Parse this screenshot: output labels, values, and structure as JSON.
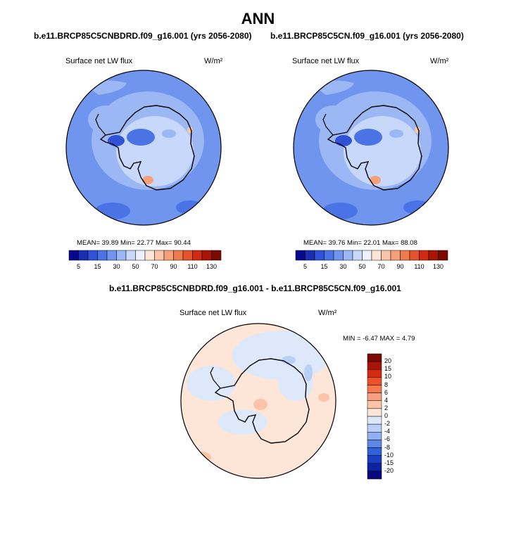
{
  "page": {
    "title": "ANN"
  },
  "panels": [
    {
      "case_title": "b.e11.BRCP85C5CNBDRD.f09_g16.001 (yrs 2056-2080)",
      "variable": "Surface net LW flux",
      "units": "W/m²",
      "stats_text": "MEAN=  39.89  Min=  22.77  Max=  90.44",
      "stats": {
        "mean": 39.89,
        "min": 22.77,
        "max": 90.44
      }
    },
    {
      "case_title": "b.e11.BRCP85C5CN.f09_g16.001 (yrs 2056-2080)",
      "variable": "Surface net LW flux",
      "units": "W/m²",
      "stats_text": "MEAN=  39.76  Min=  22.01  Max=  88.08",
      "stats": {
        "mean": 39.76,
        "min": 22.01,
        "max": 88.08
      }
    }
  ],
  "difference_panel": {
    "case_title": "b.e11.BRCP85C5CNBDRD.f09_g16.001 - b.e11.BRCP85C5CN.f09_g16.001",
    "variable": "Surface net LW flux",
    "units": "W/m²",
    "stats_text": "MIN =  -6.47 MAX =   4.79",
    "stats": {
      "min": -6.47,
      "max": 4.79
    }
  },
  "chart_data": [
    {
      "type": "heatmap",
      "projection": "south-polar-stereographic",
      "title": "b.e11.BRCP85C5CNBDRD.f09_g16.001 (yrs 2056-2080)",
      "variable": "Surface net LW flux",
      "units": "W/m²",
      "colorbar": {
        "orientation": "horizontal",
        "levels": [
          5,
          10,
          15,
          20,
          30,
          40,
          50,
          60,
          70,
          80,
          90,
          100,
          110,
          120,
          130
        ],
        "tick_labels": [
          "5",
          "15",
          "30",
          "50",
          "70",
          "90",
          "110",
          "130"
        ],
        "colors": [
          "#08088c",
          "#1a2fb0",
          "#2f52d6",
          "#4a73e6",
          "#6f95ee",
          "#9bb8f5",
          "#c7d8fa",
          "#ecf1fd",
          "#fde5d6",
          "#f9c4a8",
          "#f4a079",
          "#ee7a4f",
          "#e5522d",
          "#cf2b12",
          "#a81406",
          "#7a0a02"
        ]
      },
      "mean": 39.89,
      "min": 22.77,
      "max": 90.44
    },
    {
      "type": "heatmap",
      "projection": "south-polar-stereographic",
      "title": "b.e11.BRCP85C5CN.f09_g16.001 (yrs 2056-2080)",
      "variable": "Surface net LW flux",
      "units": "W/m²",
      "colorbar": {
        "orientation": "horizontal",
        "levels": [
          5,
          10,
          15,
          20,
          30,
          40,
          50,
          60,
          70,
          80,
          90,
          100,
          110,
          120,
          130
        ],
        "tick_labels": [
          "5",
          "15",
          "30",
          "50",
          "70",
          "90",
          "110",
          "130"
        ],
        "colors": [
          "#08088c",
          "#1a2fb0",
          "#2f52d6",
          "#4a73e6",
          "#6f95ee",
          "#9bb8f5",
          "#c7d8fa",
          "#ecf1fd",
          "#fde5d6",
          "#f9c4a8",
          "#f4a079",
          "#ee7a4f",
          "#e5522d",
          "#cf2b12",
          "#a81406",
          "#7a0a02"
        ]
      },
      "mean": 39.76,
      "min": 22.01,
      "max": 88.08
    },
    {
      "type": "heatmap",
      "projection": "south-polar-stereographic",
      "title": "b.e11.BRCP85C5CNBDRD.f09_g16.001 - b.e11.BRCP85C5CN.f09_g16.001",
      "variable": "Surface net LW flux",
      "units": "W/m²",
      "colorbar": {
        "orientation": "vertical",
        "tick_labels": [
          "20",
          "15",
          "10",
          "8",
          "6",
          "4",
          "2",
          "0",
          "-2",
          "-4",
          "-6",
          "-8",
          "-10",
          "-15",
          "-20"
        ],
        "colors": [
          "#7a0a02",
          "#a81406",
          "#d42a10",
          "#ef5024",
          "#f47a4e",
          "#f8a07e",
          "#fbc4a8",
          "#fde6d8",
          "#dde9fb",
          "#b9cff6",
          "#8eb0f0",
          "#5f88e6",
          "#3261dc",
          "#1a3fc4",
          "#0d22a0",
          "#08087a"
        ]
      },
      "min": -6.47,
      "max": 4.79
    }
  ]
}
